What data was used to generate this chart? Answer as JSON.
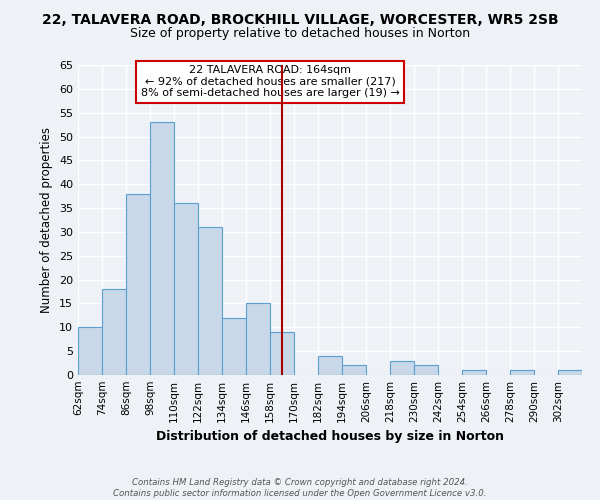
{
  "title1": "22, TALAVERA ROAD, BROCKHILL VILLAGE, WORCESTER, WR5 2SB",
  "title2": "Size of property relative to detached houses in Norton",
  "xlabel": "Distribution of detached houses by size in Norton",
  "ylabel": "Number of detached properties",
  "bin_labels": [
    "62sqm",
    "74sqm",
    "86sqm",
    "98sqm",
    "110sqm",
    "122sqm",
    "134sqm",
    "146sqm",
    "158sqm",
    "170sqm",
    "182sqm",
    "194sqm",
    "206sqm",
    "218sqm",
    "230sqm",
    "242sqm",
    "254sqm",
    "266sqm",
    "278sqm",
    "290sqm",
    "302sqm"
  ],
  "bin_edges": [
    62,
    74,
    86,
    98,
    110,
    122,
    134,
    146,
    158,
    170,
    182,
    194,
    206,
    218,
    230,
    242,
    254,
    266,
    278,
    290,
    302
  ],
  "bar_heights": [
    10,
    18,
    38,
    53,
    36,
    31,
    12,
    15,
    9,
    0,
    4,
    2,
    0,
    3,
    2,
    0,
    1,
    0,
    1,
    0,
    1
  ],
  "bar_color": "#c8d8e8",
  "bar_edge_color": "#5a9fd4",
  "vline_x": 164,
  "vline_color": "#aa0000",
  "annotation_line1": "22 TALAVERA ROAD: 164sqm",
  "annotation_line2": "← 92% of detached houses are smaller (217)",
  "annotation_line3": "8% of semi-detached houses are larger (19) →",
  "annotation_box_color": "#ffffff",
  "annotation_box_edge": "#cc0000",
  "ylim": [
    0,
    65
  ],
  "yticks": [
    0,
    5,
    10,
    15,
    20,
    25,
    30,
    35,
    40,
    45,
    50,
    55,
    60,
    65
  ],
  "footnote1": "Contains HM Land Registry data © Crown copyright and database right 2024.",
  "footnote2": "Contains public sector information licensed under the Open Government Licence v3.0.",
  "background_color": "#eef2f6",
  "grid_color": "#ffffff",
  "title1_fontsize": 10,
  "title2_fontsize": 9
}
